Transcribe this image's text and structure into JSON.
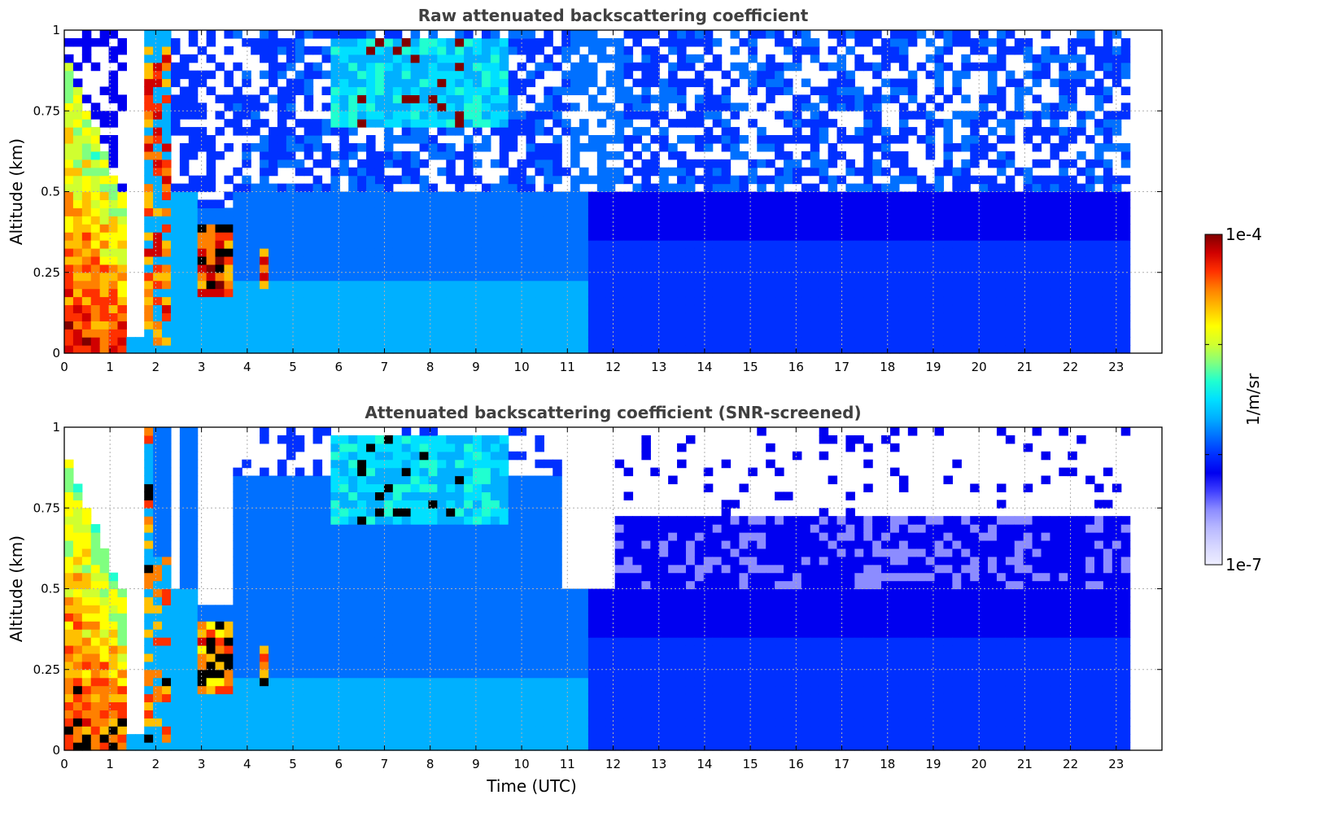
{
  "chart_data": [
    {
      "type": "heatmap",
      "title": "Raw attenuated backscattering coefficient",
      "xlabel": "",
      "ylabel": "Altitude (km)",
      "xlim": [
        0,
        24
      ],
      "ylim": [
        0,
        1
      ],
      "x_ticks": [
        "0",
        "1",
        "2",
        "3",
        "4",
        "5",
        "6",
        "7",
        "8",
        "9",
        "10",
        "11",
        "12",
        "13",
        "14",
        "15",
        "16",
        "17",
        "18",
        "19",
        "20",
        "21",
        "22",
        "23"
      ],
      "y_ticks": [
        "0",
        "0.25",
        "0.5",
        "0.75",
        "1"
      ],
      "data_end_time": 23.3,
      "grid": true,
      "features": [
        {
          "time_range": [
            0,
            1.45
          ],
          "altitude_range": [
            0,
            0.9
          ],
          "level": "high",
          "desc": "strong backscatter (red/dark red)"
        },
        {
          "time_range": [
            1.75,
            2.3
          ],
          "altitude_range": [
            0.1,
            1.0
          ],
          "level": "high"
        },
        {
          "time_range": [
            3.0,
            3.7
          ],
          "altitude_range": [
            0.18,
            0.4
          ],
          "level": "high"
        },
        {
          "time_range": [
            4.2,
            4.5
          ],
          "altitude_range": [
            0.2,
            0.32
          ],
          "level": "high"
        },
        {
          "time_range": [
            6.5,
            8.7
          ],
          "altitude_range": [
            0.65,
            1.0
          ],
          "level": "high",
          "desc": "scattered red streaks"
        },
        {
          "time_range": [
            2,
            11.5
          ],
          "altitude_range": [
            0,
            0.75
          ],
          "level": "moderate",
          "desc": "cyan/light blue layer"
        },
        {
          "time_range": [
            12,
            23.3
          ],
          "altitude_range": [
            0,
            0.5
          ],
          "level": "low",
          "desc": "blue background"
        },
        {
          "time_range": [
            2,
            23.3
          ],
          "altitude_range": [
            0.5,
            1.0
          ],
          "level": "noise",
          "desc": "noisy blue/white"
        }
      ]
    },
    {
      "type": "heatmap",
      "title": "Attenuated backscattering coefficient (SNR-screened)",
      "xlabel": "Time (UTC)",
      "ylabel": "Altitude (km)",
      "xlim": [
        0,
        24
      ],
      "ylim": [
        0,
        1
      ],
      "x_ticks": [
        "0",
        "1",
        "2",
        "3",
        "4",
        "5",
        "6",
        "7",
        "8",
        "9",
        "10",
        "11",
        "12",
        "13",
        "14",
        "15",
        "16",
        "17",
        "18",
        "19",
        "20",
        "21",
        "22",
        "23"
      ],
      "y_ticks": [
        "0",
        "0.25",
        "0.5",
        "0.75",
        "1"
      ],
      "data_end_time": 23.3,
      "grid": true,
      "features": [
        {
          "time_range": [
            0,
            1.45
          ],
          "altitude_range": [
            0,
            0.9
          ],
          "level": "saturated",
          "desc": "black core with red edges"
        },
        {
          "time_range": [
            5.8,
            9.8
          ],
          "altitude_range": [
            0.75,
            1.0
          ],
          "level": "moderate",
          "desc": "blue cloud tops with streaks"
        },
        {
          "time_range": [
            12,
            23.3
          ],
          "altitude_range": [
            0.5,
            0.75
          ],
          "level": "low",
          "desc": "light purple patches"
        },
        {
          "time_range": [
            10.8,
            12
          ],
          "altitude_range": [
            0.4,
            1.0
          ],
          "level": "masked",
          "desc": "white notch"
        }
      ]
    }
  ],
  "colorbar": {
    "label": "1/m/sr",
    "max_label": "1e-4",
    "min_label": "1e-7",
    "scale": "log",
    "colors": [
      "#eeeeff",
      "#d6d6ff",
      "#b8b8ff",
      "#8c8cff",
      "#4040ff",
      "#0000f0",
      "#0030ff",
      "#0070ff",
      "#00b0ff",
      "#00e0ff",
      "#20ffd0",
      "#80ff80",
      "#d0ff30",
      "#ffff00",
      "#ffc000",
      "#ff8000",
      "#ff3000",
      "#d00000",
      "#800000"
    ]
  }
}
